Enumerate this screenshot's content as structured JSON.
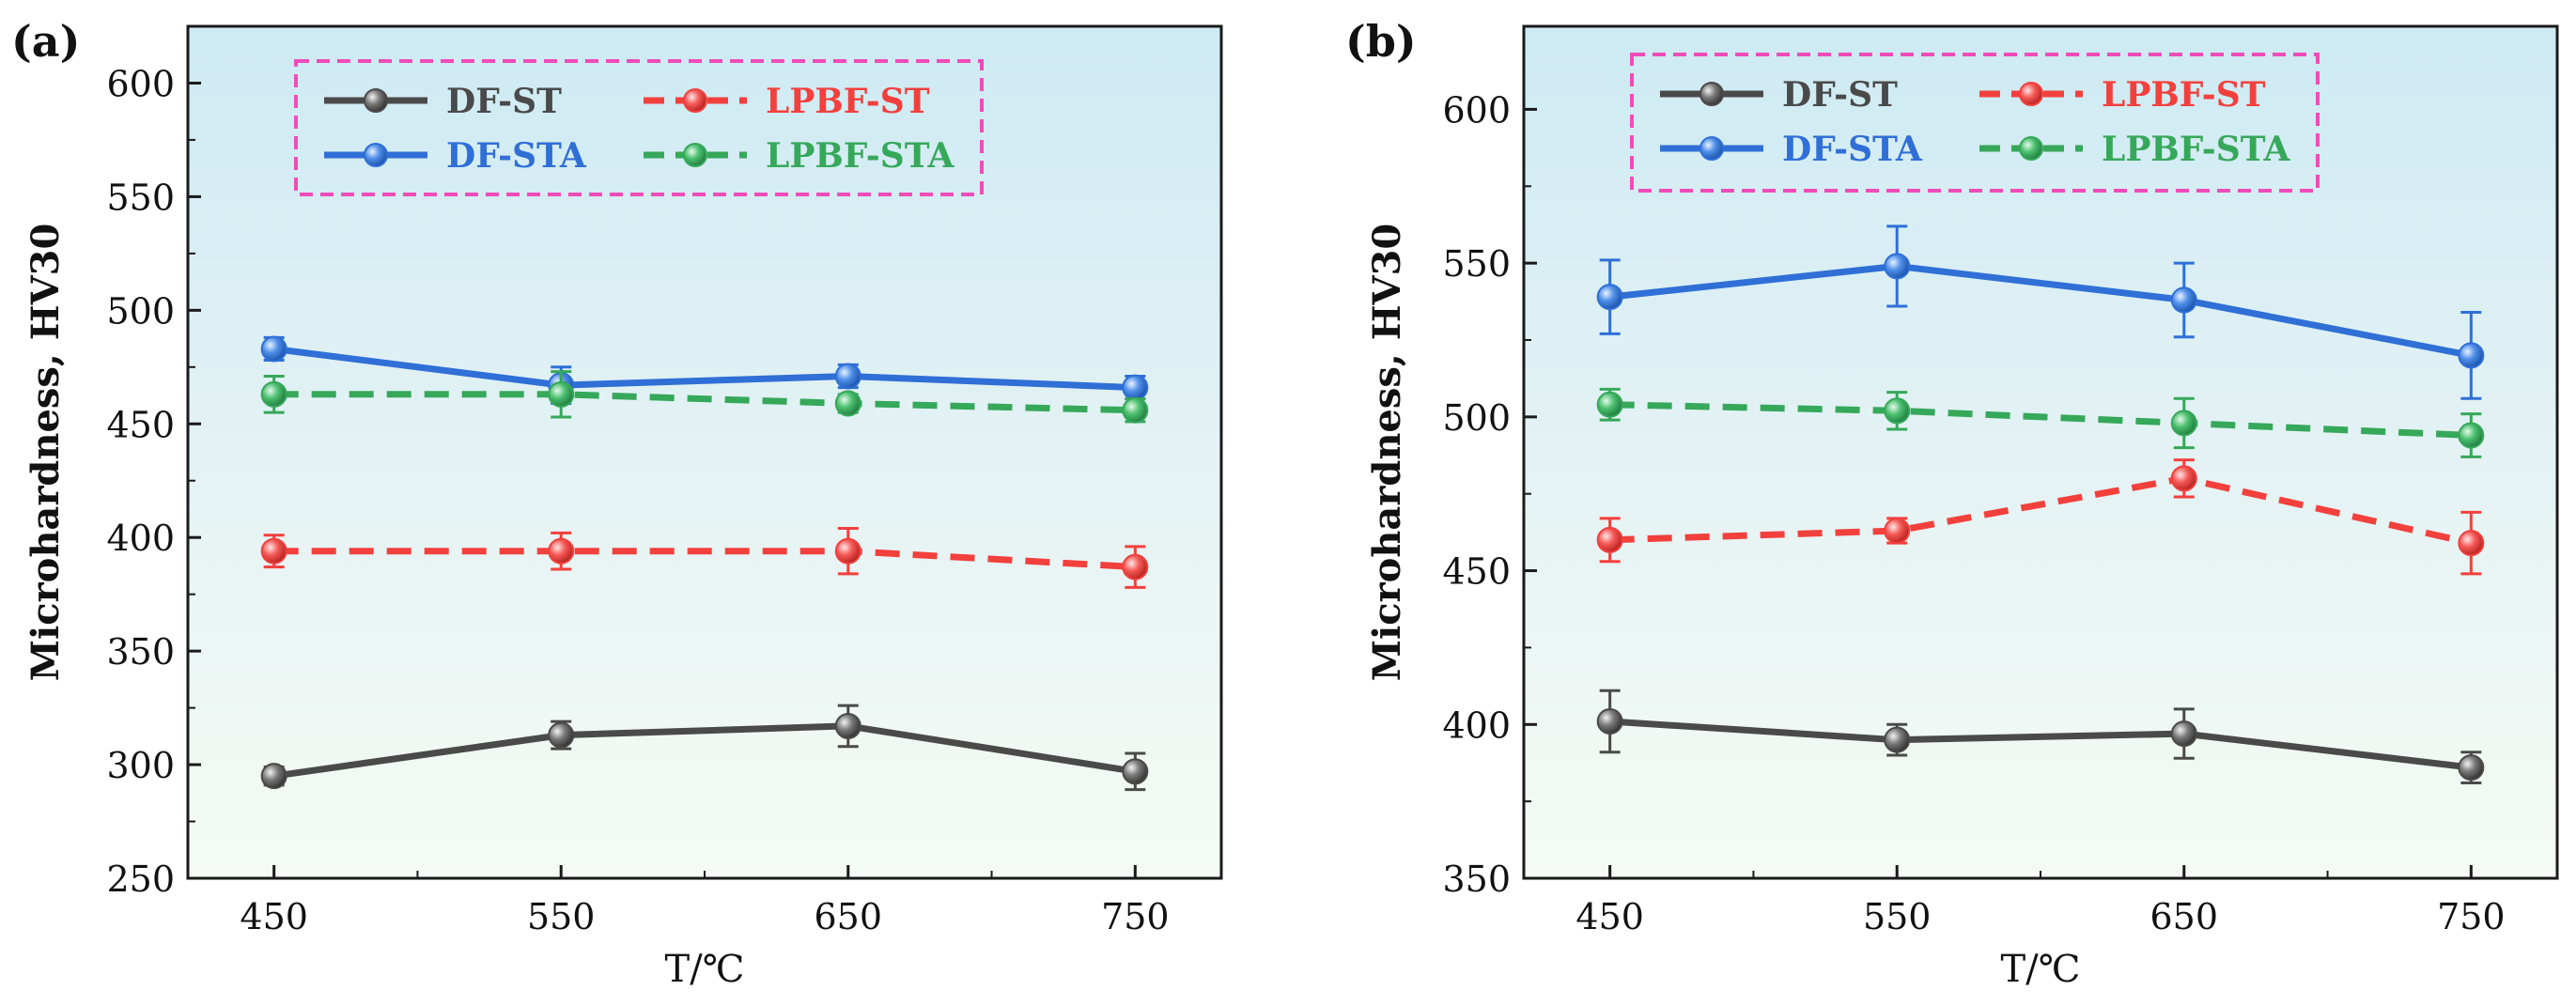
{
  "figure": {
    "panels": [
      "(a)",
      "(b)"
    ]
  },
  "colors": {
    "DF-ST": "#4a4a4a",
    "DF-STA": "#2f6fd6",
    "LPBF-ST": "#f2403d",
    "LPBF-STA": "#36a85a",
    "legend_border": "#f04cb8"
  },
  "chart_data": [
    {
      "type": "line",
      "panel": "(a)",
      "title": "",
      "xlabel": "T/℃",
      "ylabel": "Microhardness, HV30",
      "x": [
        450,
        550,
        650,
        750
      ],
      "xticks": [
        "450",
        "550",
        "650",
        "750"
      ],
      "xlim": [
        420,
        780
      ],
      "ylim": [
        250,
        625
      ],
      "yticks": [
        250,
        300,
        350,
        400,
        450,
        500,
        550,
        600
      ],
      "legend": "top-left",
      "series": [
        {
          "name": "DF-ST",
          "style": "solid",
          "values": [
            295,
            313,
            317,
            297
          ],
          "errors": [
            4,
            6,
            9,
            8
          ]
        },
        {
          "name": "LPBF-ST",
          "style": "dashed",
          "values": [
            394,
            394,
            394,
            387
          ],
          "errors": [
            7,
            8,
            10,
            9
          ]
        },
        {
          "name": "DF-STA",
          "style": "solid",
          "values": [
            483,
            467,
            471,
            466
          ],
          "errors": [
            5,
            8,
            5,
            5
          ]
        },
        {
          "name": "LPBF-STA",
          "style": "dashed",
          "values": [
            463,
            463,
            459,
            456
          ],
          "errors": [
            8,
            10,
            4,
            5
          ]
        }
      ]
    },
    {
      "type": "line",
      "panel": "(b)",
      "title": "",
      "xlabel": "T/℃",
      "ylabel": "Microhardness, HV30",
      "x": [
        450,
        550,
        650,
        750
      ],
      "xticks": [
        "450",
        "550",
        "650",
        "750"
      ],
      "xlim": [
        420,
        780
      ],
      "ylim": [
        350,
        627
      ],
      "yticks": [
        350,
        400,
        450,
        500,
        550,
        600
      ],
      "legend": "top-left",
      "series": [
        {
          "name": "DF-ST",
          "style": "solid",
          "values": [
            401,
            395,
            397,
            386
          ],
          "errors": [
            10,
            5,
            8,
            5
          ]
        },
        {
          "name": "LPBF-ST",
          "style": "dashed",
          "values": [
            460,
            463,
            480,
            459
          ],
          "errors": [
            7,
            4,
            6,
            10
          ]
        },
        {
          "name": "DF-STA",
          "style": "solid",
          "values": [
            539,
            549,
            538,
            520
          ],
          "errors": [
            12,
            13,
            12,
            14
          ]
        },
        {
          "name": "LPBF-STA",
          "style": "dashed",
          "values": [
            504,
            502,
            498,
            494
          ],
          "errors": [
            5,
            6,
            8,
            7
          ]
        }
      ]
    }
  ]
}
